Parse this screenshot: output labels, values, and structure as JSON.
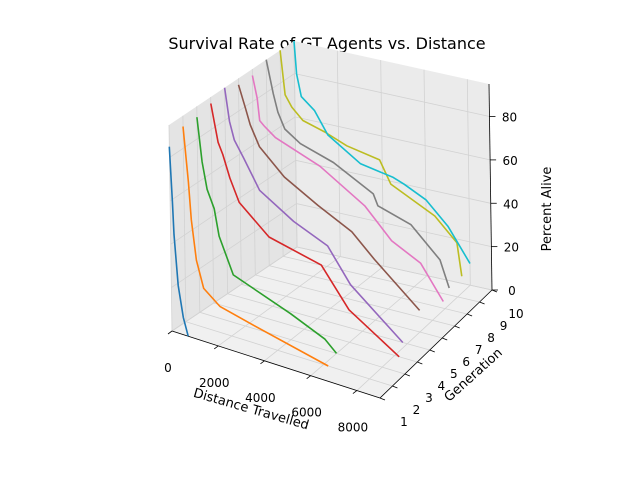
{
  "chart_data": {
    "type": "line",
    "title": "Survival Rate of GT Agents vs. Distance",
    "xlabel": "Distance Travelled",
    "ylabel": "Generation",
    "zlabel": "Percent Alive",
    "xlim": [
      0,
      9000
    ],
    "ylim": [
      1,
      10
    ],
    "zlim": [
      0,
      95
    ],
    "xticks": [
      "0",
      "2000",
      "4000",
      "6000",
      "8000"
    ],
    "yticks": [
      "1",
      "2",
      "3",
      "4",
      "5",
      "6",
      "7",
      "8",
      "9",
      "10"
    ],
    "zticks": [
      "0",
      "20",
      "40",
      "60",
      "80"
    ],
    "grid": true,
    "projection": "3d",
    "series": [
      {
        "generation": 1,
        "color": "#1f77b4",
        "x": [
          0,
          100,
          150,
          300,
          500,
          700
        ],
        "z": [
          85,
          60,
          45,
          22,
          8,
          0
        ]
      },
      {
        "generation": 2,
        "color": "#ff7f0e",
        "x": [
          0,
          200,
          300,
          500,
          800,
          1500,
          3000,
          6200
        ],
        "z": [
          90,
          65,
          48,
          30,
          18,
          12,
          8,
          0
        ]
      },
      {
        "generation": 3,
        "color": "#2ca02c",
        "x": [
          0,
          200,
          400,
          700,
          900,
          1500,
          4000,
          5500,
          6000
        ],
        "z": [
          90,
          70,
          58,
          50,
          38,
          22,
          12,
          5,
          0
        ]
      },
      {
        "generation": 4,
        "color": "#d62728",
        "x": [
          0,
          300,
          500,
          800,
          1200,
          2500,
          4800,
          6000,
          8200
        ],
        "z": [
          92,
          75,
          70,
          60,
          50,
          38,
          32,
          15,
          0
        ]
      },
      {
        "generation": 5,
        "color": "#9467bd",
        "x": [
          0,
          200,
          400,
          800,
          1500,
          3000,
          4500,
          5500,
          7800
        ],
        "z": [
          95,
          80,
          72,
          65,
          52,
          42,
          35,
          20,
          0
        ]
      },
      {
        "generation": 6,
        "color": "#8c564b",
        "x": [
          0,
          300,
          500,
          900,
          2000,
          3500,
          5000,
          6000,
          8000
        ],
        "z": [
          92,
          82,
          75,
          66,
          55,
          46,
          38,
          28,
          10
        ]
      },
      {
        "generation": 7,
        "color": "#e377c2",
        "x": [
          0,
          200,
          300,
          500,
          1000,
          3000,
          5000,
          6200,
          7500,
          8500
        ],
        "z": [
          92,
          82,
          72,
          70,
          66,
          58,
          45,
          32,
          25,
          10
        ]
      },
      {
        "generation": 8,
        "color": "#7f7f7f",
        "x": [
          0,
          300,
          500,
          800,
          1500,
          3000,
          4800,
          5000,
          6500,
          7800,
          8200
        ],
        "z": [
          95,
          80,
          72,
          65,
          60,
          55,
          45,
          40,
          35,
          22,
          10
        ]
      },
      {
        "generation": 9,
        "color": "#bcbd22",
        "x": [
          0,
          200,
          500,
          1000,
          2000,
          3000,
          4500,
          5000,
          7000,
          8000,
          8200
        ],
        "z": [
          95,
          75,
          70,
          65,
          62,
          58,
          55,
          45,
          35,
          25,
          10
        ]
      },
      {
        "generation": 10,
        "color": "#17becf",
        "x": [
          0,
          100,
          300,
          900,
          1500,
          3000,
          4500,
          5000,
          6000,
          7000,
          8000
        ],
        "z": [
          95,
          80,
          70,
          65,
          55,
          45,
          42,
          40,
          35,
          25,
          10
        ]
      }
    ]
  }
}
